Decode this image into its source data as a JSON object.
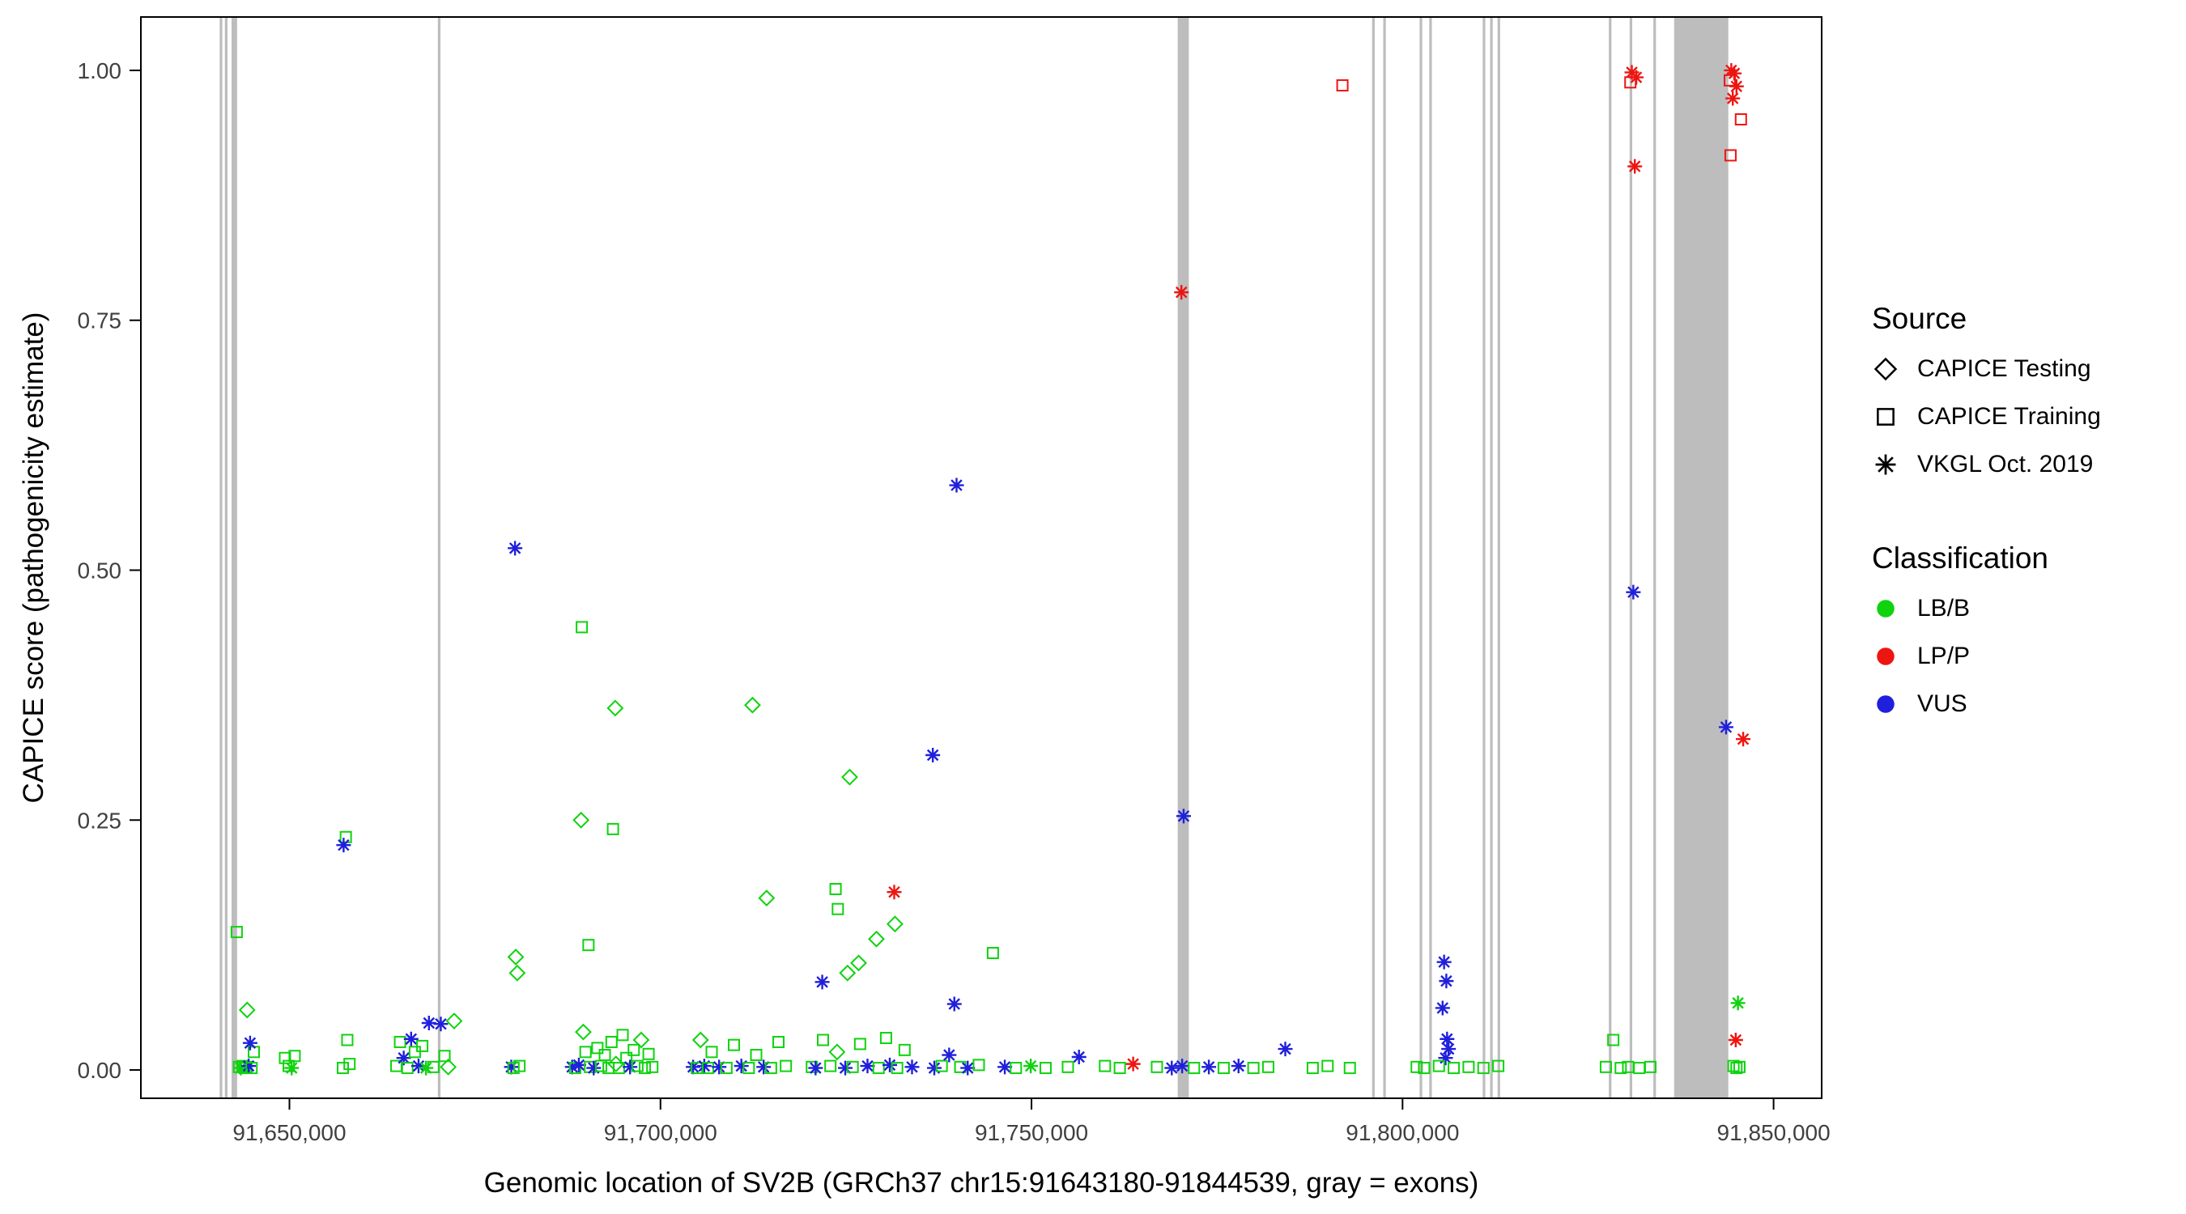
{
  "figure": {
    "background": "#FFFFFF",
    "panel_border": "#000000",
    "tick_label_color": "#404040"
  },
  "legend": {
    "source": {
      "title": "Source",
      "items": [
        {
          "label": "CAPICE Testing",
          "marker": "diamond"
        },
        {
          "label": "CAPICE Training",
          "marker": "square"
        },
        {
          "label": "VKGL Oct. 2019",
          "marker": "asterisk"
        }
      ]
    },
    "classification": {
      "title": "Classification",
      "items": [
        {
          "label": "LB/B",
          "color": "#0ED30E"
        },
        {
          "label": "LP/P",
          "color": "#EE1511"
        },
        {
          "label": "VUS",
          "color": "#1F1FDC"
        }
      ]
    }
  },
  "chart_data": {
    "type": "scatter",
    "title": "",
    "xlabel": "Genomic location of SV2B (GRCh37 chr15:91643180-91844539, gray = exons)",
    "ylabel": "CAPICE score (pathogenicity estimate)",
    "xlim": [
      91629980,
      91856480
    ],
    "ylim": [
      -0.0283,
      1.0534
    ],
    "grid": false,
    "legend_position": "right",
    "x_ticks": [
      {
        "v": 91650000,
        "label": "91,650,000"
      },
      {
        "v": 91700000,
        "label": "91,700,000"
      },
      {
        "v": 91750000,
        "label": "91,750,000"
      },
      {
        "v": 91800000,
        "label": "91,800,000"
      },
      {
        "v": 91850000,
        "label": "91,850,000"
      }
    ],
    "y_ticks": [
      {
        "v": 0.0,
        "label": "0.00"
      },
      {
        "v": 0.25,
        "label": "0.25"
      },
      {
        "v": 0.5,
        "label": "0.50"
      },
      {
        "v": 0.75,
        "label": "0.75"
      },
      {
        "v": 1.0,
        "label": "1.00"
      }
    ],
    "exon_color": "#BDBDBD",
    "exons": [
      [
        91640600,
        91640950
      ],
      [
        91641300,
        91641650
      ],
      [
        91642200,
        91642950
      ],
      [
        91670000,
        91670350
      ],
      [
        91769700,
        91771200
      ],
      [
        91795900,
        91796250
      ],
      [
        91797400,
        91797750
      ],
      [
        91802300,
        91802650
      ],
      [
        91803600,
        91803950
      ],
      [
        91810800,
        91811150
      ],
      [
        91811800,
        91812150
      ],
      [
        91812800,
        91813150
      ],
      [
        91827800,
        91828150
      ],
      [
        91830600,
        91830950
      ],
      [
        91833800,
        91834150
      ],
      [
        91836600,
        91843900
      ]
    ],
    "marker_key": {
      "d": "CAPICE Testing (diamond)",
      "s": "CAPICE Training (square)",
      "a": "VKGL Oct. 2019 (asterisk)"
    },
    "class_colors": {
      "g": "#0ED30E",
      "r": "#EE1511",
      "b": "#1F1FDC"
    },
    "points": [
      [
        91791900,
        0.985,
        "s",
        "r"
      ],
      [
        91830900,
        0.998,
        "a",
        "r"
      ],
      [
        91831500,
        0.993,
        "a",
        "r"
      ],
      [
        91830700,
        0.988,
        "s",
        "r"
      ],
      [
        91831300,
        0.904,
        "a",
        "r"
      ],
      [
        91831100,
        0.478,
        "a",
        "b"
      ],
      [
        91844300,
        1.0,
        "a",
        "r"
      ],
      [
        91844700,
        0.997,
        "a",
        "r"
      ],
      [
        91844100,
        0.99,
        "s",
        "r"
      ],
      [
        91845000,
        0.984,
        "a",
        "r"
      ],
      [
        91844500,
        0.972,
        "a",
        "r"
      ],
      [
        91845600,
        0.951,
        "s",
        "r"
      ],
      [
        91844200,
        0.915,
        "s",
        "r"
      ],
      [
        91770200,
        0.778,
        "a",
        "r"
      ],
      [
        91739900,
        0.585,
        "a",
        "b"
      ],
      [
        91680400,
        0.522,
        "a",
        "b"
      ],
      [
        91689400,
        0.443,
        "s",
        "g"
      ],
      [
        91693900,
        0.362,
        "d",
        "g"
      ],
      [
        91712400,
        0.365,
        "d",
        "g"
      ],
      [
        91843600,
        0.343,
        "a",
        "b"
      ],
      [
        91845900,
        0.331,
        "a",
        "r"
      ],
      [
        91736700,
        0.315,
        "a",
        "b"
      ],
      [
        91725500,
        0.293,
        "d",
        "g"
      ],
      [
        91770500,
        0.254,
        "a",
        "b"
      ],
      [
        91689300,
        0.25,
        "d",
        "g"
      ],
      [
        91693600,
        0.241,
        "s",
        "g"
      ],
      [
        91657600,
        0.233,
        "s",
        "g"
      ],
      [
        91657300,
        0.225,
        "a",
        "b"
      ],
      [
        91731500,
        0.178,
        "a",
        "r"
      ],
      [
        91714300,
        0.172,
        "d",
        "g"
      ],
      [
        91723600,
        0.181,
        "s",
        "g"
      ],
      [
        91723900,
        0.161,
        "s",
        "g"
      ],
      [
        91731600,
        0.146,
        "d",
        "g"
      ],
      [
        91729100,
        0.131,
        "d",
        "g"
      ],
      [
        91642900,
        0.138,
        "s",
        "g"
      ],
      [
        91690300,
        0.125,
        "s",
        "g"
      ],
      [
        91744800,
        0.117,
        "s",
        "g"
      ],
      [
        91805600,
        0.108,
        "a",
        "b"
      ],
      [
        91805900,
        0.089,
        "a",
        "b"
      ],
      [
        91680500,
        0.113,
        "d",
        "g"
      ],
      [
        91680700,
        0.097,
        "d",
        "g"
      ],
      [
        91726700,
        0.107,
        "d",
        "g"
      ],
      [
        91725200,
        0.097,
        "d",
        "g"
      ],
      [
        91721800,
        0.088,
        "a",
        "b"
      ],
      [
        91644300,
        0.06,
        "d",
        "g"
      ],
      [
        91739600,
        0.066,
        "a",
        "b"
      ],
      [
        91805400,
        0.062,
        "a",
        "b"
      ],
      [
        91845200,
        0.067,
        "a",
        "g"
      ],
      [
        91844900,
        0.03,
        "a",
        "r"
      ],
      [
        91806000,
        0.031,
        "a",
        "b"
      ],
      [
        91806200,
        0.021,
        "a",
        "b"
      ],
      [
        91805800,
        0.012,
        "a",
        "b"
      ],
      [
        91784200,
        0.021,
        "a",
        "b"
      ],
      [
        91756400,
        0.013,
        "a",
        "b"
      ],
      [
        91668800,
        0.047,
        "a",
        "b"
      ],
      [
        91672200,
        0.049,
        "d",
        "g"
      ],
      [
        91763700,
        0.006,
        "a",
        "r"
      ],
      [
        91828400,
        0.03,
        "s",
        "g"
      ],
      [
        91689600,
        0.038,
        "d",
        "g"
      ],
      [
        91643200,
        0.003,
        "s",
        "g"
      ],
      [
        91643450,
        0.002,
        "a",
        "g"
      ],
      [
        91643700,
        0.004,
        "s",
        "g"
      ],
      [
        91643950,
        0.002,
        "s",
        "g"
      ],
      [
        91644200,
        0.003,
        "s",
        "g"
      ],
      [
        91644500,
        0.004,
        "a",
        "b"
      ],
      [
        91644900,
        0.002,
        "s",
        "g"
      ],
      [
        91645200,
        0.018,
        "s",
        "g"
      ],
      [
        91644700,
        0.027,
        "a",
        "b"
      ],
      [
        91649400,
        0.012,
        "s",
        "g"
      ],
      [
        91649900,
        0.004,
        "s",
        "g"
      ],
      [
        91650300,
        0.002,
        "a",
        "g"
      ],
      [
        91650700,
        0.014,
        "s",
        "g"
      ],
      [
        91657200,
        0.002,
        "s",
        "g"
      ],
      [
        91657800,
        0.03,
        "s",
        "g"
      ],
      [
        91658100,
        0.006,
        "s",
        "g"
      ],
      [
        91664400,
        0.004,
        "s",
        "g"
      ],
      [
        91664900,
        0.028,
        "s",
        "g"
      ],
      [
        91665400,
        0.012,
        "a",
        "b"
      ],
      [
        91665900,
        0.002,
        "s",
        "g"
      ],
      [
        91666400,
        0.031,
        "a",
        "b"
      ],
      [
        91666900,
        0.018,
        "s",
        "g"
      ],
      [
        91667400,
        0.004,
        "a",
        "b"
      ],
      [
        91667900,
        0.024,
        "s",
        "g"
      ],
      [
        91668400,
        0.002,
        "a",
        "g"
      ],
      [
        91669400,
        0.003,
        "s",
        "g"
      ],
      [
        91670400,
        0.046,
        "a",
        "b"
      ],
      [
        91670900,
        0.014,
        "s",
        "g"
      ],
      [
        91671400,
        0.003,
        "d",
        "g"
      ],
      [
        91679900,
        0.003,
        "a",
        "b"
      ],
      [
        91680200,
        0.002,
        "s",
        "g"
      ],
      [
        91681000,
        0.004,
        "s",
        "g"
      ],
      [
        91688100,
        0.003,
        "a",
        "b"
      ],
      [
        91688500,
        0.002,
        "s",
        "g"
      ],
      [
        91689000,
        0.005,
        "a",
        "b"
      ],
      [
        91689900,
        0.018,
        "s",
        "g"
      ],
      [
        91690500,
        0.003,
        "s",
        "g"
      ],
      [
        91691000,
        0.002,
        "a",
        "b"
      ],
      [
        91691500,
        0.022,
        "s",
        "g"
      ],
      [
        91692000,
        0.004,
        "s",
        "g"
      ],
      [
        91692500,
        0.015,
        "s",
        "g"
      ],
      [
        91693000,
        0.002,
        "s",
        "g"
      ],
      [
        91693400,
        0.028,
        "s",
        "g"
      ],
      [
        91694000,
        0.006,
        "d",
        "g"
      ],
      [
        91694400,
        0.002,
        "s",
        "g"
      ],
      [
        91694900,
        0.035,
        "s",
        "g"
      ],
      [
        91695400,
        0.012,
        "s",
        "g"
      ],
      [
        91695900,
        0.003,
        "a",
        "b"
      ],
      [
        91696400,
        0.02,
        "s",
        "g"
      ],
      [
        91696900,
        0.004,
        "s",
        "g"
      ],
      [
        91697400,
        0.03,
        "d",
        "g"
      ],
      [
        91697900,
        0.002,
        "s",
        "g"
      ],
      [
        91698400,
        0.016,
        "s",
        "g"
      ],
      [
        91698900,
        0.003,
        "s",
        "g"
      ],
      [
        91704400,
        0.003,
        "a",
        "b"
      ],
      [
        91704900,
        0.002,
        "s",
        "g"
      ],
      [
        91705400,
        0.03,
        "d",
        "g"
      ],
      [
        91705900,
        0.004,
        "a",
        "b"
      ],
      [
        91706400,
        0.002,
        "s",
        "g"
      ],
      [
        91706900,
        0.018,
        "s",
        "g"
      ],
      [
        91707900,
        0.003,
        "a",
        "b"
      ],
      [
        91708900,
        0.002,
        "s",
        "g"
      ],
      [
        91709900,
        0.025,
        "s",
        "g"
      ],
      [
        91710900,
        0.004,
        "a",
        "b"
      ],
      [
        91711900,
        0.002,
        "s",
        "g"
      ],
      [
        91712900,
        0.015,
        "s",
        "g"
      ],
      [
        91713900,
        0.003,
        "a",
        "b"
      ],
      [
        91714900,
        0.002,
        "s",
        "g"
      ],
      [
        91715900,
        0.028,
        "s",
        "g"
      ],
      [
        91716900,
        0.004,
        "s",
        "g"
      ],
      [
        91720400,
        0.003,
        "s",
        "g"
      ],
      [
        91720900,
        0.002,
        "a",
        "b"
      ],
      [
        91721900,
        0.03,
        "s",
        "g"
      ],
      [
        91722900,
        0.004,
        "s",
        "g"
      ],
      [
        91723800,
        0.018,
        "d",
        "g"
      ],
      [
        91724900,
        0.002,
        "a",
        "b"
      ],
      [
        91725900,
        0.003,
        "s",
        "g"
      ],
      [
        91726900,
        0.026,
        "s",
        "g"
      ],
      [
        91727900,
        0.004,
        "a",
        "b"
      ],
      [
        91729400,
        0.002,
        "s",
        "g"
      ],
      [
        91730400,
        0.032,
        "s",
        "g"
      ],
      [
        91730900,
        0.005,
        "a",
        "b"
      ],
      [
        91731900,
        0.002,
        "s",
        "g"
      ],
      [
        91732900,
        0.02,
        "s",
        "g"
      ],
      [
        91733900,
        0.003,
        "a",
        "b"
      ],
      [
        91736900,
        0.002,
        "a",
        "b"
      ],
      [
        91737900,
        0.004,
        "s",
        "g"
      ],
      [
        91738900,
        0.015,
        "a",
        "b"
      ],
      [
        91740400,
        0.003,
        "s",
        "g"
      ],
      [
        91741400,
        0.002,
        "a",
        "b"
      ],
      [
        91742900,
        0.005,
        "s",
        "g"
      ],
      [
        91746400,
        0.003,
        "a",
        "b"
      ],
      [
        91747900,
        0.002,
        "s",
        "g"
      ],
      [
        91749900,
        0.004,
        "a",
        "g"
      ],
      [
        91751900,
        0.002,
        "s",
        "g"
      ],
      [
        91754900,
        0.003,
        "s",
        "g"
      ],
      [
        91759900,
        0.004,
        "s",
        "g"
      ],
      [
        91761900,
        0.002,
        "s",
        "g"
      ],
      [
        91766900,
        0.003,
        "s",
        "g"
      ],
      [
        91768900,
        0.002,
        "a",
        "b"
      ],
      [
        91770300,
        0.004,
        "a",
        "b"
      ],
      [
        91771900,
        0.002,
        "s",
        "g"
      ],
      [
        91773900,
        0.003,
        "a",
        "b"
      ],
      [
        91775900,
        0.002,
        "s",
        "g"
      ],
      [
        91777900,
        0.004,
        "a",
        "b"
      ],
      [
        91779900,
        0.002,
        "s",
        "g"
      ],
      [
        91781900,
        0.003,
        "s",
        "g"
      ],
      [
        91787900,
        0.002,
        "s",
        "g"
      ],
      [
        91789900,
        0.004,
        "s",
        "g"
      ],
      [
        91792900,
        0.002,
        "s",
        "g"
      ],
      [
        91801900,
        0.003,
        "s",
        "g"
      ],
      [
        91802900,
        0.002,
        "s",
        "g"
      ],
      [
        91804900,
        0.004,
        "s",
        "g"
      ],
      [
        91806900,
        0.002,
        "s",
        "g"
      ],
      [
        91808900,
        0.003,
        "s",
        "g"
      ],
      [
        91810900,
        0.002,
        "s",
        "g"
      ],
      [
        91812900,
        0.004,
        "s",
        "g"
      ],
      [
        91827400,
        0.003,
        "s",
        "g"
      ],
      [
        91829400,
        0.002,
        "s",
        "g"
      ],
      [
        91830400,
        0.003,
        "s",
        "g"
      ],
      [
        91831900,
        0.002,
        "s",
        "g"
      ],
      [
        91833400,
        0.003,
        "s",
        "g"
      ],
      [
        91844600,
        0.004,
        "s",
        "g"
      ],
      [
        91845000,
        0.002,
        "s",
        "g"
      ],
      [
        91845400,
        0.003,
        "s",
        "g"
      ]
    ]
  }
}
